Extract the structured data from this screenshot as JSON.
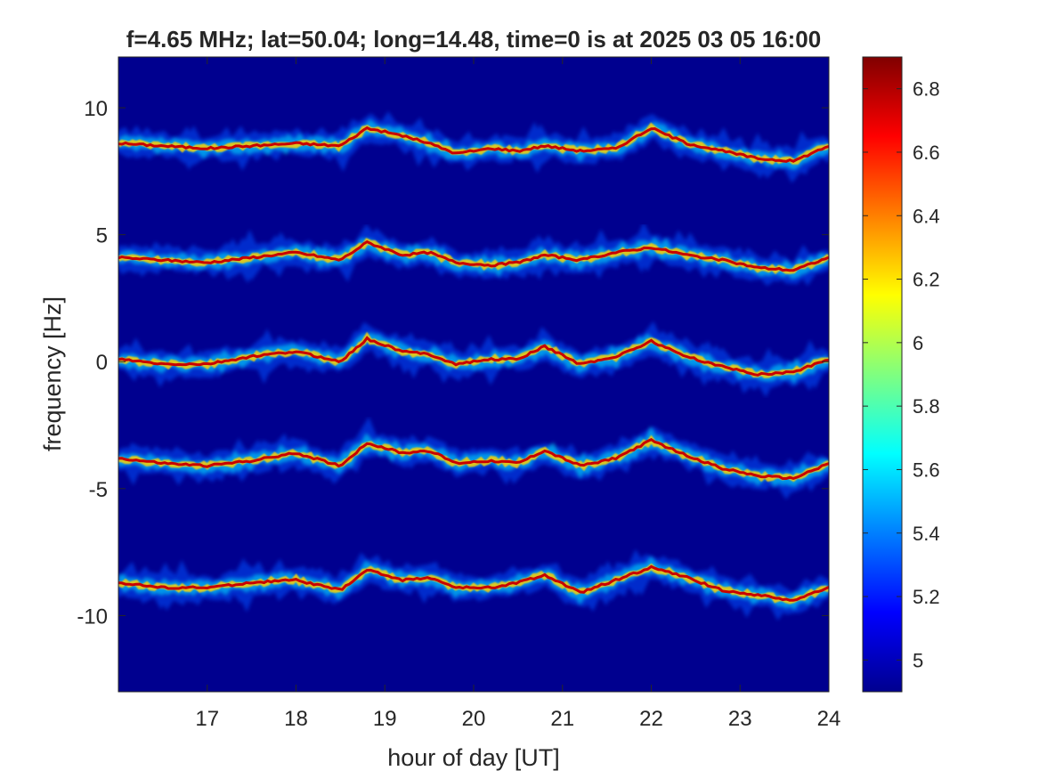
{
  "chart_data": {
    "type": "heatmap",
    "title": "f=4.65 MHz;  lat=50.04; long=14.48, time=0 is at 2025 03 05 16:00",
    "xlabel": "hour of day [UT]",
    "ylabel": "frequency [Hz]",
    "xlim": [
      16,
      24
    ],
    "ylim": [
      -13,
      12
    ],
    "x_ticks": [
      "17",
      "18",
      "19",
      "20",
      "21",
      "22",
      "23",
      "24"
    ],
    "x_tick_values": [
      17,
      18,
      19,
      20,
      21,
      22,
      23,
      24
    ],
    "y_ticks": [
      "10",
      "5",
      "0",
      "-5",
      "-10"
    ],
    "y_tick_values": [
      10,
      5,
      0,
      -5,
      -10
    ],
    "colorbar": {
      "colormap": "jet",
      "range": [
        4.9,
        6.9
      ],
      "ticks": [
        "6.8",
        "6.6",
        "6.4",
        "6.2",
        "6",
        "5.8",
        "5.6",
        "5.4",
        "5.2",
        "5"
      ],
      "tick_values": [
        6.8,
        6.6,
        6.4,
        6.2,
        6.0,
        5.8,
        5.6,
        5.4,
        5.2,
        5.0
      ]
    },
    "background_color": "#00008f",
    "traces_x_hours": [
      16.0,
      16.5,
      17.0,
      17.5,
      18.0,
      18.5,
      18.8,
      19.2,
      19.5,
      19.8,
      20.2,
      20.5,
      20.8,
      21.2,
      21.6,
      22.0,
      22.4,
      22.8,
      23.2,
      23.6,
      24.0
    ],
    "series": [
      {
        "values": [
          8.6,
          8.5,
          8.4,
          8.5,
          8.6,
          8.5,
          9.2,
          8.9,
          8.6,
          8.2,
          8.4,
          8.3,
          8.5,
          8.3,
          8.4,
          9.2,
          8.6,
          8.3,
          8.0,
          7.9,
          8.5
        ]
      },
      {
        "values": [
          4.1,
          4.0,
          3.9,
          4.1,
          4.3,
          4.0,
          4.7,
          4.2,
          4.3,
          3.9,
          3.8,
          3.9,
          4.2,
          4.0,
          4.3,
          4.5,
          4.2,
          4.0,
          3.7,
          3.6,
          4.1
        ]
      },
      {
        "values": [
          0.1,
          -0.1,
          -0.1,
          0.2,
          0.4,
          0.0,
          0.9,
          0.4,
          0.3,
          -0.1,
          0.1,
          0.1,
          0.6,
          -0.1,
          0.2,
          0.8,
          0.2,
          -0.2,
          -0.5,
          -0.4,
          0.1
        ]
      },
      {
        "values": [
          -3.8,
          -4.0,
          -4.1,
          -3.9,
          -3.6,
          -4.1,
          -3.2,
          -3.6,
          -3.5,
          -4.0,
          -3.9,
          -4.0,
          -3.5,
          -4.1,
          -3.8,
          -3.1,
          -3.7,
          -4.2,
          -4.5,
          -4.6,
          -4.0
        ]
      },
      {
        "values": [
          -8.7,
          -8.9,
          -8.9,
          -8.7,
          -8.6,
          -9.0,
          -8.2,
          -8.6,
          -8.5,
          -8.9,
          -8.9,
          -8.7,
          -8.4,
          -9.1,
          -8.6,
          -8.1,
          -8.5,
          -9.0,
          -9.2,
          -9.4,
          -8.9
        ]
      }
    ]
  }
}
